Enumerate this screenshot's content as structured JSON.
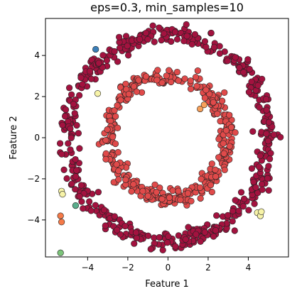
{
  "chart_data": {
    "type": "scatter",
    "title": "eps=0.3, min_samples=10",
    "xlabel": "Feature 1",
    "ylabel": "Feature 2",
    "xlim": [
      -6.1,
      6.0
    ],
    "ylim": [
      -5.8,
      5.8
    ],
    "x_ticks": [
      -4,
      -2,
      0,
      2,
      4
    ],
    "y_ticks": [
      -4,
      -2,
      0,
      2,
      4
    ],
    "x_tick_labels": [
      "−4",
      "−2",
      "0",
      "2",
      "4"
    ],
    "y_tick_labels": [
      "−4",
      "−2",
      "0",
      "2",
      "4"
    ],
    "grid": false,
    "legend": "none",
    "marker_edge_color": "#222222",
    "series": [
      {
        "color": "#a3123f",
        "shape": "ring",
        "center": [
          0,
          0
        ],
        "radius": 5.0,
        "noise": 0.22,
        "count": 520
      },
      {
        "color": "#e04a4a",
        "shape": "ring",
        "center": [
          0,
          0
        ],
        "radius": 2.95,
        "noise": 0.2,
        "count": 380,
        "extra_points": [
          [
            3.0,
            0.4
          ],
          [
            3.2,
            0.3
          ],
          [
            3.15,
            0.5
          ],
          [
            3.35,
            0.25
          ],
          [
            2.9,
            0.35
          ]
        ]
      },
      {
        "color": "#3b7fb8",
        "points": [
          [
            -3.6,
            4.3
          ]
        ]
      },
      {
        "color": "#f7f3a8",
        "points": [
          [
            -3.5,
            2.15
          ]
        ]
      },
      {
        "color": "#f7a05a",
        "points": [
          [
            1.6,
            1.4
          ],
          [
            1.8,
            1.6
          ]
        ]
      },
      {
        "color": "#f7f3a8",
        "points": [
          [
            -5.3,
            -2.6
          ],
          [
            -5.25,
            -2.75
          ]
        ]
      },
      {
        "color": "#f57a48",
        "points": [
          [
            -5.35,
            -3.8
          ],
          [
            -5.3,
            -4.1
          ]
        ]
      },
      {
        "color": "#5aae8c",
        "points": [
          [
            -4.6,
            -3.3
          ]
        ]
      },
      {
        "color": "#f7f3a8",
        "points": [
          [
            4.45,
            -3.65
          ],
          [
            4.6,
            -3.8
          ],
          [
            4.65,
            -3.6
          ]
        ]
      },
      {
        "color": "#7cc47a",
        "points": [
          [
            -5.35,
            -5.6
          ]
        ]
      }
    ]
  }
}
